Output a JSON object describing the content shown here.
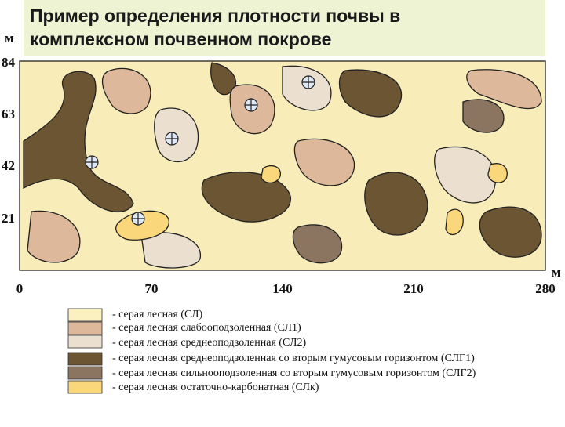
{
  "header": {
    "title": "Пример определения плотности почвы  в комплексном почвенном покрове"
  },
  "axes": {
    "y_unit": "м",
    "y_ticks": [
      "84",
      "63",
      "42",
      "21"
    ],
    "x_unit": "м",
    "x_ticks": [
      "0",
      "70",
      "140",
      "210",
      "280"
    ]
  },
  "legend": {
    "items": [
      "- серая лесная (СЛ)",
      "- серая лесная слабооподзоленная (СЛ1)",
      "- серая лесная среднеоподзоленная (СЛ2)",
      "- серая лесная среднеоподзоленная со вторым гумусовым горизонтом (СЛГ1)",
      "- серая лесная сильнооподзоленная со вторым гумусовым горизонтом (СЛГ2)",
      "- серая лесная остаточно-карбонатная (СЛк)"
    ]
  }
}
